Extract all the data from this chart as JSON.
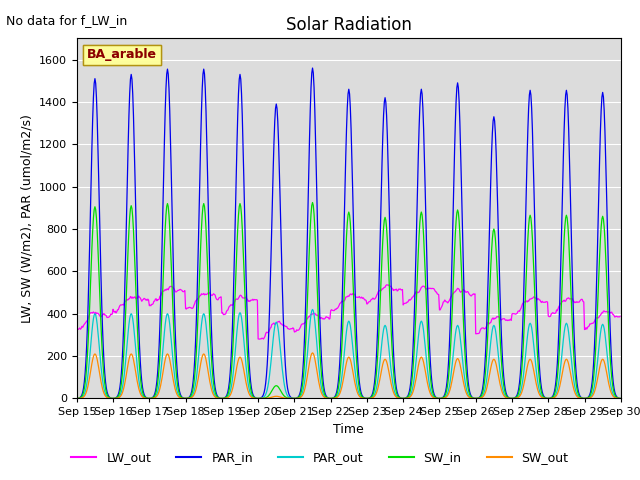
{
  "title": "Solar Radiation",
  "annotation": "No data for f_LW_in",
  "ylabel": "LW, SW (W/m2), PAR (umol/m2/s)",
  "xlabel": "Time",
  "legend_label": "BA_arable",
  "ylim": [
    0,
    1700
  ],
  "yticks": [
    0,
    200,
    400,
    600,
    800,
    1000,
    1200,
    1400,
    1600
  ],
  "start_day": 15,
  "end_day": 30,
  "num_days": 15,
  "series": {
    "PAR_in": {
      "color": "#0000EE",
      "label": "PAR_in"
    },
    "SW_in": {
      "color": "#00DD00",
      "label": "SW_in"
    },
    "PAR_out": {
      "color": "#00CCCC",
      "label": "PAR_out"
    },
    "SW_out": {
      "color": "#FF8C00",
      "label": "SW_out"
    },
    "LW_out": {
      "color": "#FF00FF",
      "label": "LW_out"
    }
  },
  "PAR_in_peaks": [
    1510,
    1530,
    1555,
    1555,
    1530,
    1390,
    1560,
    1460,
    1420,
    1460,
    1490,
    1330,
    1455,
    1455,
    1445
  ],
  "SW_in_peaks": [
    905,
    910,
    920,
    920,
    920,
    60,
    925,
    880,
    855,
    880,
    890,
    800,
    865,
    865,
    860
  ],
  "PAR_out_peaks": [
    400,
    400,
    400,
    400,
    405,
    360,
    420,
    365,
    345,
    365,
    345,
    345,
    355,
    355,
    350
  ],
  "SW_out_peaks": [
    210,
    210,
    210,
    210,
    195,
    10,
    215,
    195,
    185,
    195,
    188,
    185,
    185,
    185,
    185
  ],
  "LW_out_day_vals": [
    355,
    430,
    470,
    445,
    430,
    305,
    345,
    440,
    480,
    470,
    460,
    330,
    420,
    420,
    355
  ],
  "background_color": "#DCDCDC",
  "grid_color": "white",
  "title_fontsize": 12,
  "label_fontsize": 9,
  "tick_fontsize": 8,
  "legend_colors": {
    "LW_out": "#FF00FF",
    "PAR_in": "#0000EE",
    "PAR_out": "#00CCCC",
    "SW_in": "#00DD00",
    "SW_out": "#FF8C00"
  }
}
